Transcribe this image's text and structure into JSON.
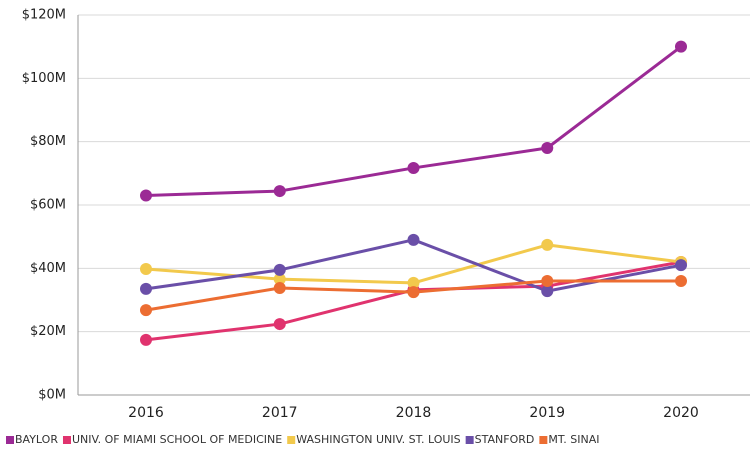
{
  "chart_data": {
    "type": "line",
    "categories": [
      "2016",
      "2017",
      "2018",
      "2019",
      "2020"
    ],
    "series": [
      {
        "name": "BAYLOR",
        "color": "#9b2a95",
        "values": [
          63,
          64.4,
          71.7,
          78,
          110
        ]
      },
      {
        "name": "UNIV. OF MIAMI SCHOOL OF MEDICINE",
        "color": "#e0336e",
        "values": [
          17.4,
          22.4,
          33.2,
          34.4,
          42
        ]
      },
      {
        "name": "WASHINGTON UNIV. ST. LOUIS",
        "color": "#f2c94c",
        "values": [
          39.8,
          36.6,
          35.4,
          47.4,
          42
        ]
      },
      {
        "name": "STANFORD",
        "color": "#6a4fa8",
        "values": [
          33.5,
          39.5,
          49,
          32.8,
          41
        ]
      },
      {
        "name": "MT. SINAI",
        "color": "#ec6d32",
        "values": [
          26.8,
          33.8,
          32.5,
          36,
          36
        ]
      }
    ],
    "ylim": [
      0,
      120
    ],
    "yticks": [
      {
        "value": 0,
        "label": "$0M"
      },
      {
        "value": 20,
        "label": "$20M"
      },
      {
        "value": 40,
        "label": "$40M"
      },
      {
        "value": 60,
        "label": "$60M"
      },
      {
        "value": 80,
        "label": "$80M"
      },
      {
        "value": 100,
        "label": "$100M"
      },
      {
        "value": 120,
        "label": "$120M"
      }
    ],
    "grid": true,
    "legend": "bottom"
  }
}
